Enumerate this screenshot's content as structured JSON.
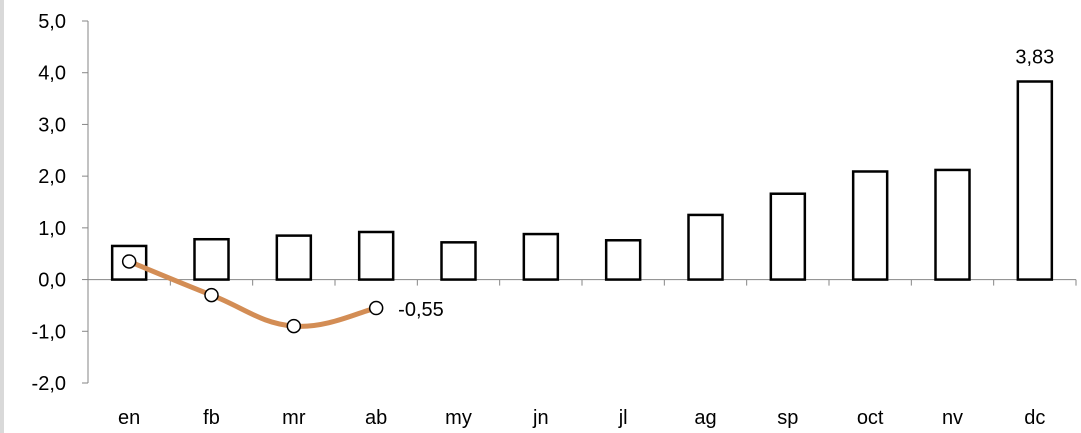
{
  "chart_data": {
    "type": "bar",
    "categories": [
      "en",
      "fb",
      "mr",
      "ab",
      "my",
      "jn",
      "jl",
      "ag",
      "sp",
      "oct",
      "nv",
      "dc"
    ],
    "ylim": [
      -2.0,
      5.0
    ],
    "yticks": [
      "-2,0",
      "-1,0",
      "0,0",
      "1,0",
      "2,0",
      "3,0",
      "4,0",
      "5,0"
    ],
    "ytick_values": [
      -2,
      -1,
      0,
      1,
      2,
      3,
      4,
      5
    ],
    "series": [
      {
        "type": "bar",
        "values": [
          0.65,
          0.78,
          0.85,
          0.92,
          0.72,
          0.88,
          0.76,
          1.25,
          1.66,
          2.09,
          2.12,
          3.83
        ],
        "color": "#000000",
        "fill": "#ffffff"
      },
      {
        "type": "line",
        "values": [
          0.35,
          -0.3,
          -0.9,
          -0.55,
          null,
          null,
          null,
          null,
          null,
          null,
          null,
          null
        ],
        "color": "#d38d55"
      }
    ],
    "data_labels": [
      {
        "series": 0,
        "index": 11,
        "text": "3,83"
      },
      {
        "series": 1,
        "index": 3,
        "text": "-0,55"
      }
    ],
    "title": "",
    "xlabel": "",
    "ylabel": "",
    "grid": false,
    "legend": "none"
  }
}
